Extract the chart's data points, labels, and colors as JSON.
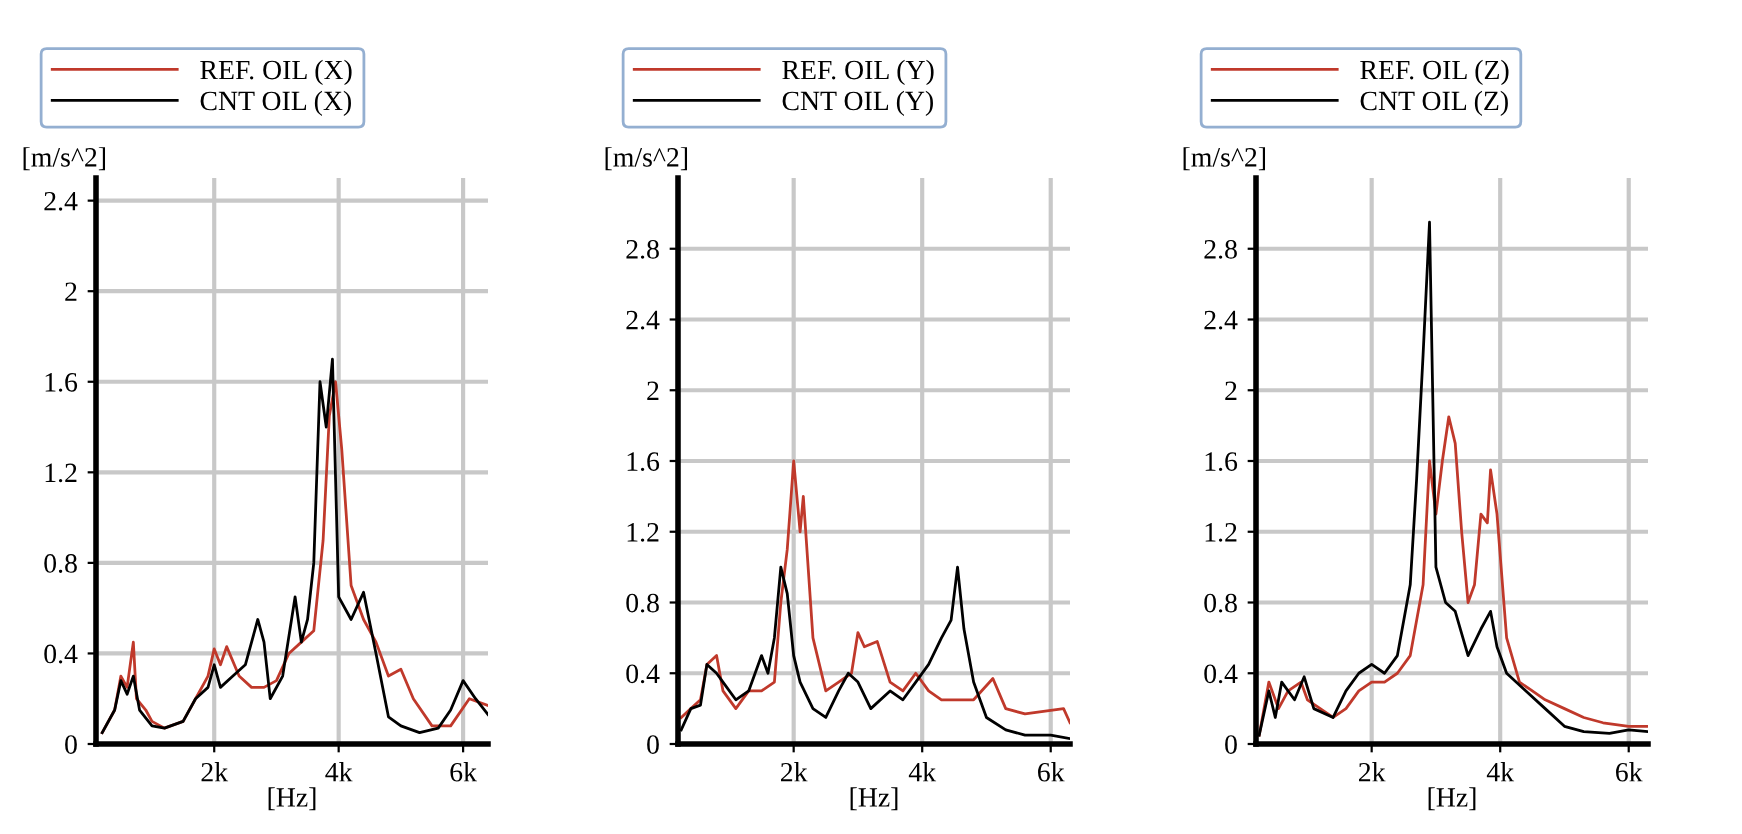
{
  "chart_data": [
    {
      "type": "line",
      "xlabel": "[Hz]",
      "ylabel": "[m/s^2]",
      "xlim": [
        100,
        6400
      ],
      "ylim": [
        0,
        2.5
      ],
      "xticks": [
        {
          "value": 2000,
          "label": "2k"
        },
        {
          "value": 4000,
          "label": "4k"
        },
        {
          "value": 6000,
          "label": "6k"
        }
      ],
      "yticks": [
        0,
        0.4,
        0.8,
        1.2,
        1.6,
        2,
        2.4
      ],
      "grid": true,
      "legend": "top",
      "series": [
        {
          "name": "REF. OIL (X)",
          "color": "#c0392b",
          "x": [
            200,
            400,
            500,
            600,
            700,
            750,
            900,
            1000,
            1200,
            1500,
            1700,
            1900,
            2000,
            2100,
            2200,
            2400,
            2600,
            2800,
            3000,
            3200,
            3400,
            3600,
            3750,
            3850,
            3950,
            4050,
            4200,
            4400,
            4600,
            4800,
            5000,
            5200,
            5500,
            5800,
            6100,
            6400
          ],
          "values": [
            0.05,
            0.15,
            0.3,
            0.25,
            0.45,
            0.2,
            0.15,
            0.1,
            0.07,
            0.1,
            0.2,
            0.3,
            0.42,
            0.35,
            0.43,
            0.3,
            0.25,
            0.25,
            0.28,
            0.4,
            0.45,
            0.5,
            0.9,
            1.45,
            1.6,
            1.3,
            0.7,
            0.55,
            0.45,
            0.3,
            0.33,
            0.2,
            0.08,
            0.08,
            0.2,
            0.17
          ]
        },
        {
          "name": "CNT OIL (X)",
          "color": "#000000",
          "x": [
            200,
            400,
            500,
            600,
            700,
            800,
            1000,
            1200,
            1500,
            1700,
            1900,
            2000,
            2100,
            2300,
            2500,
            2700,
            2800,
            2900,
            3100,
            3300,
            3400,
            3500,
            3600,
            3700,
            3800,
            3900,
            4000,
            4200,
            4400,
            4600,
            4800,
            5000,
            5300,
            5600,
            5800,
            6000,
            6200,
            6400
          ],
          "values": [
            0.05,
            0.15,
            0.28,
            0.22,
            0.3,
            0.15,
            0.08,
            0.07,
            0.1,
            0.2,
            0.25,
            0.35,
            0.25,
            0.3,
            0.35,
            0.55,
            0.45,
            0.2,
            0.3,
            0.65,
            0.45,
            0.55,
            0.8,
            1.6,
            1.4,
            1.7,
            0.65,
            0.55,
            0.67,
            0.4,
            0.12,
            0.08,
            0.05,
            0.07,
            0.15,
            0.28,
            0.2,
            0.13
          ]
        }
      ]
    },
    {
      "type": "line",
      "xlabel": "[Hz]",
      "ylabel": "[m/s^2]",
      "xlim": [
        200,
        6300
      ],
      "ylim": [
        0,
        3.2
      ],
      "xticks": [
        {
          "value": 2000,
          "label": "2k"
        },
        {
          "value": 4000,
          "label": "4k"
        },
        {
          "value": 6000,
          "label": "6k"
        }
      ],
      "yticks": [
        0,
        0.4,
        0.8,
        1.2,
        1.6,
        2,
        2.4,
        2.8
      ],
      "grid": true,
      "legend": "top",
      "series": [
        {
          "name": "REF. OIL (Y)",
          "color": "#c0392b",
          "x": [
            250,
            400,
            550,
            650,
            800,
            900,
            1100,
            1300,
            1500,
            1700,
            1800,
            1900,
            2000,
            2100,
            2150,
            2300,
            2500,
            2700,
            2900,
            3000,
            3100,
            3300,
            3500,
            3700,
            3900,
            4100,
            4300,
            4600,
            4800,
            5100,
            5300,
            5600,
            6000,
            6200,
            6300
          ],
          "values": [
            0.15,
            0.2,
            0.25,
            0.45,
            0.5,
            0.3,
            0.2,
            0.3,
            0.3,
            0.35,
            0.8,
            1.1,
            1.6,
            1.2,
            1.4,
            0.6,
            0.3,
            0.35,
            0.4,
            0.63,
            0.55,
            0.58,
            0.35,
            0.3,
            0.4,
            0.3,
            0.25,
            0.25,
            0.25,
            0.37,
            0.2,
            0.17,
            0.19,
            0.2,
            0.12
          ]
        },
        {
          "name": "CNT OIL (Y)",
          "color": "#000000",
          "x": [
            250,
            400,
            550,
            650,
            800,
            900,
            1100,
            1300,
            1500,
            1600,
            1700,
            1800,
            1900,
            2000,
            2100,
            2300,
            2500,
            2700,
            2850,
            3000,
            3200,
            3500,
            3700,
            3900,
            4100,
            4300,
            4450,
            4550,
            4650,
            4800,
            5000,
            5300,
            5600,
            6000,
            6300
          ],
          "values": [
            0.08,
            0.2,
            0.22,
            0.45,
            0.4,
            0.35,
            0.25,
            0.3,
            0.5,
            0.4,
            0.6,
            1.0,
            0.85,
            0.5,
            0.35,
            0.2,
            0.15,
            0.3,
            0.4,
            0.35,
            0.2,
            0.3,
            0.25,
            0.35,
            0.45,
            0.6,
            0.7,
            1.0,
            0.65,
            0.35,
            0.15,
            0.08,
            0.05,
            0.05,
            0.03
          ]
        }
      ]
    },
    {
      "type": "line",
      "xlabel": "[Hz]",
      "ylabel": "[m/s^2]",
      "xlim": [
        200,
        6300
      ],
      "ylim": [
        0,
        3.2
      ],
      "xticks": [
        {
          "value": 2000,
          "label": "2k"
        },
        {
          "value": 4000,
          "label": "4k"
        },
        {
          "value": 6000,
          "label": "6k"
        }
      ],
      "yticks": [
        0,
        0.4,
        0.8,
        1.2,
        1.6,
        2,
        2.4,
        2.8
      ],
      "grid": true,
      "legend": "top",
      "series": [
        {
          "name": "REF. OIL (Z)",
          "color": "#c0392b",
          "x": [
            250,
            400,
            550,
            700,
            900,
            1000,
            1200,
            1400,
            1600,
            1800,
            2000,
            2200,
            2400,
            2600,
            2800,
            2900,
            3000,
            3100,
            3200,
            3300,
            3400,
            3500,
            3600,
            3700,
            3800,
            3850,
            3950,
            4100,
            4300,
            4500,
            4700,
            5000,
            5300,
            5600,
            6000,
            6300
          ],
          "values": [
            0.05,
            0.35,
            0.2,
            0.3,
            0.35,
            0.25,
            0.2,
            0.15,
            0.2,
            0.3,
            0.35,
            0.35,
            0.4,
            0.5,
            0.9,
            1.6,
            1.3,
            1.6,
            1.85,
            1.7,
            1.2,
            0.8,
            0.9,
            1.3,
            1.25,
            1.55,
            1.3,
            0.6,
            0.35,
            0.3,
            0.25,
            0.2,
            0.15,
            0.12,
            0.1,
            0.1
          ]
        },
        {
          "name": "CNT OIL (Z)",
          "color": "#000000",
          "x": [
            250,
            400,
            500,
            600,
            800,
            950,
            1100,
            1400,
            1600,
            1800,
            2000,
            2200,
            2400,
            2600,
            2700,
            2800,
            2900,
            3000,
            3150,
            3300,
            3500,
            3700,
            3850,
            3950,
            4100,
            4400,
            4700,
            5000,
            5300,
            5700,
            6000,
            6300
          ],
          "values": [
            0.05,
            0.3,
            0.15,
            0.35,
            0.25,
            0.38,
            0.2,
            0.15,
            0.3,
            0.4,
            0.45,
            0.4,
            0.5,
            0.9,
            1.5,
            2.2,
            2.95,
            1.0,
            0.8,
            0.75,
            0.5,
            0.65,
            0.75,
            0.55,
            0.4,
            0.3,
            0.2,
            0.1,
            0.07,
            0.06,
            0.08,
            0.07
          ]
        }
      ]
    }
  ]
}
